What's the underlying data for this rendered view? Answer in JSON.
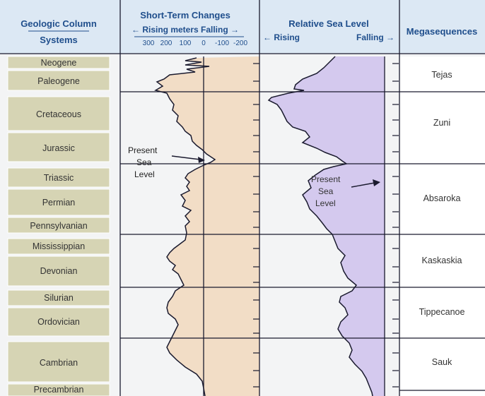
{
  "header": {
    "column_title": "Geologic Column",
    "column_sub": "Systems",
    "short_term_title": "Short-Term Changes",
    "short_term_sub": "← Rising meters Falling →",
    "relative_title": "Relative Sea Level",
    "relative_rising": "← Rising",
    "relative_falling": "Falling →",
    "mega_title": "Megasequences"
  },
  "scale_ticks": [
    "300",
    "200",
    "100",
    "0",
    "-100",
    "-200"
  ],
  "systems": [
    "Neogene",
    "Paleogene",
    "Cretaceous",
    "Jurassic",
    "Triassic",
    "Permian",
    "Pennsylvanian",
    "Mississippian",
    "Devonian",
    "Silurian",
    "Ordovician",
    "Cambrian",
    "Precambrian"
  ],
  "megasequences": [
    "Tejas",
    "Zuni",
    "Absaroka",
    "Kaskaskia",
    "Tippecanoe",
    "Sauk"
  ],
  "annotations": {
    "left_line1": "Present",
    "left_line2": "Sea",
    "left_line3": "Level",
    "right_line1": "Present",
    "right_line2": "Sea",
    "right_line3": "Level"
  },
  "colors": {
    "header_bg": "#dce8f4",
    "system_cell": "#d6d4b4",
    "tan_fill": "#f2ddc6",
    "purple_fill": "#d4c9ee",
    "grid_line": "#1a1a2e",
    "header_text": "#1f4e8c"
  }
}
